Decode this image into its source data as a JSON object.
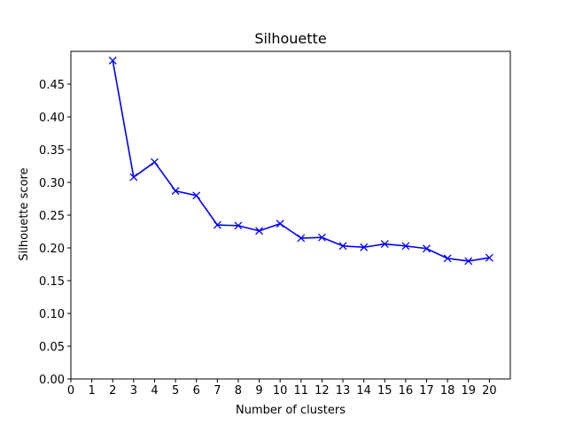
{
  "chart_data": {
    "type": "line",
    "title": "Silhouette",
    "xlabel": "Number of clusters",
    "ylabel": "Silhouette score",
    "xlim": [
      0,
      21
    ],
    "ylim": [
      0,
      0.5
    ],
    "x_ticks": [
      0,
      1,
      2,
      3,
      4,
      5,
      6,
      7,
      8,
      9,
      10,
      11,
      12,
      13,
      14,
      15,
      16,
      17,
      18,
      19,
      20
    ],
    "y_ticks": [
      "0.00",
      "0.05",
      "0.10",
      "0.15",
      "0.20",
      "0.25",
      "0.30",
      "0.35",
      "0.40",
      "0.45"
    ],
    "grid": false,
    "series": [
      {
        "color": "#0000ff",
        "marker": "x",
        "x": [
          2,
          3,
          4,
          5,
          6,
          7,
          8,
          9,
          10,
          11,
          12,
          13,
          14,
          15,
          16,
          17,
          18,
          19,
          20
        ],
        "y": [
          0.486,
          0.308,
          0.331,
          0.287,
          0.28,
          0.235,
          0.234,
          0.226,
          0.237,
          0.215,
          0.216,
          0.203,
          0.201,
          0.206,
          0.203,
          0.199,
          0.184,
          0.18,
          0.185
        ]
      }
    ]
  }
}
